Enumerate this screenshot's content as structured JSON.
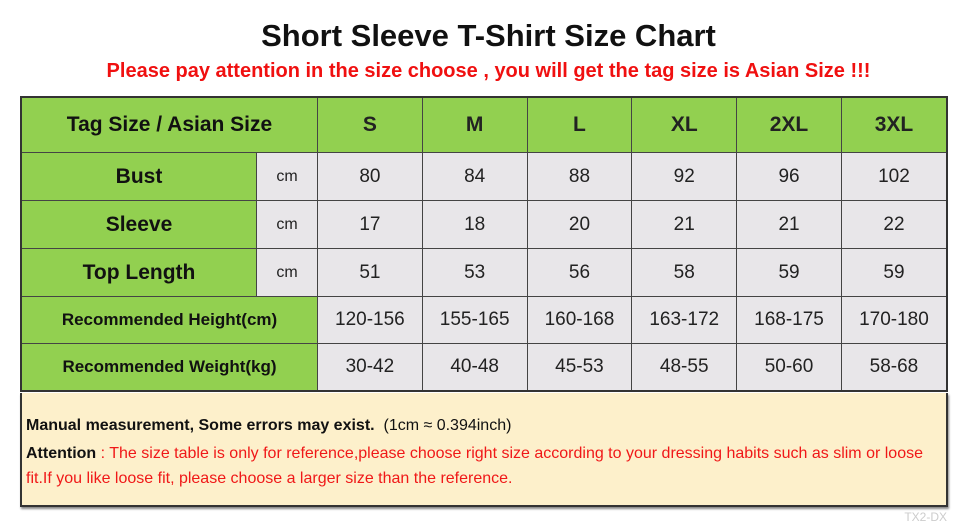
{
  "title": "Short Sleeve T-Shirt Size Chart",
  "subtitle": "Please pay attention in the size choose , you will get the tag size is Asian Size !!!",
  "table": {
    "header_label": "Tag Size / Asian Size",
    "sizes": [
      "S",
      "M",
      "L",
      "XL",
      "2XL",
      "3XL"
    ],
    "measure_rows": [
      {
        "label": "Bust",
        "unit": "cm",
        "values": [
          "80",
          "84",
          "88",
          "92",
          "96",
          "102"
        ]
      },
      {
        "label": "Sleeve",
        "unit": "cm",
        "values": [
          "17",
          "18",
          "20",
          "21",
          "21",
          "22"
        ]
      },
      {
        "label": "Top Length",
        "unit": "cm",
        "values": [
          "51",
          "53",
          "56",
          "58",
          "59",
          "59"
        ]
      }
    ],
    "recommend_rows": [
      {
        "label": "Recommended Height(cm)",
        "values": [
          "120-156",
          "155-165",
          "160-168",
          "163-172",
          "168-175",
          "170-180"
        ]
      },
      {
        "label": "Recommended Weight(kg)",
        "values": [
          "30-42",
          "40-48",
          "45-53",
          "48-55",
          "50-60",
          "58-68"
        ]
      }
    ]
  },
  "note": {
    "bold": "Manual measurement, Some errors may exist.",
    "conversion": "(1cm ≈ 0.394inch)",
    "attention_label": "Attention",
    "attention_text": " : The size table is only for reference,please choose right size according to your dressing habits such as slim or loose fit.If you like loose fit, please choose a larger size than the reference."
  },
  "watermark": "TX2-DX",
  "colors": {
    "header_green": "#92d050",
    "cell_gray": "#e8e6e9",
    "note_bg": "#fdf0cb",
    "warning_red": "#f01010"
  }
}
